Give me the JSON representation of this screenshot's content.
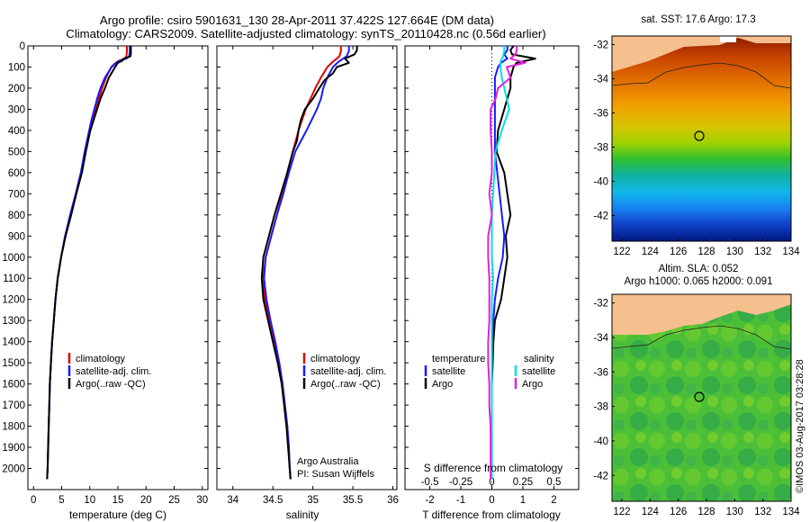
{
  "header": {
    "line1": "Argo profile: csiro 5901631_130 28-Apr-2011 37.422S 127.664E (DM data)",
    "line2": "Climatology: CARS2009. Satellite-adjusted climatology: synTS_20110428.nc (0.56d earlier)"
  },
  "colors": {
    "climatology": "#e00000",
    "satellite": "#1a1aff",
    "argo": "#000000",
    "salinity_diff_sat": "#00e0e0",
    "salinity_diff_argo": "#e020e0",
    "land": "#f5c08e"
  },
  "depth_axis": {
    "ticks": [
      "0",
      "100",
      "200",
      "300",
      "400",
      "500",
      "600",
      "700",
      "800",
      "900",
      "1000",
      "1100",
      "1200",
      "1300",
      "1400",
      "1500",
      "1600",
      "1700",
      "1800",
      "1900",
      "2000"
    ]
  },
  "legend": {
    "climatology": "climatology",
    "satellite": "satellite-adj. clim.",
    "argo": "Argo(..raw -QC)"
  },
  "diff_legend": {
    "temperature_head": "temperature",
    "salinity_head": "salinity",
    "satellite": "satellite",
    "argo": "Argo"
  },
  "credits": {
    "line1": "Argo Australia",
    "line2": "PI: Susan Wijffels"
  },
  "sst_panel": {
    "title": "sat. SST: 17.6 Argo: 17.3"
  },
  "sla_panel": {
    "title1": "Altim. SLA: 0.052",
    "title2": "Argo h1000: 0.065 h2000: 0.091"
  },
  "watermark": "©IMOS 03-Aug-2017 03:28:28",
  "map_axes": {
    "lat_ticks": [
      "-32",
      "-34",
      "-36",
      "-38",
      "-40",
      "-42"
    ],
    "lon_ticks": [
      "122",
      "124",
      "126",
      "128",
      "130",
      "132",
      "134"
    ]
  },
  "chart_data": [
    {
      "type": "line",
      "title": "",
      "xlabel": "temperature (deg C)",
      "ylabel": "",
      "xlim": [
        -1,
        31
      ],
      "ylim": [
        2100,
        0
      ],
      "x_ticks": [
        "0",
        "5",
        "10",
        "15",
        "20",
        "25",
        "30"
      ],
      "series": [
        {
          "name": "climatology",
          "depth": [
            0,
            25,
            50,
            60,
            70,
            80,
            100,
            150,
            200,
            250,
            300,
            350,
            400,
            450,
            500,
            600,
            700,
            800,
            900,
            1000,
            1100,
            1200,
            1300,
            1400,
            1500,
            1600,
            1700,
            1800,
            1900,
            2000,
            2050
          ],
          "values": [
            16.6,
            16.6,
            16.5,
            16.2,
            15.2,
            14.6,
            13.8,
            12.9,
            12.2,
            11.6,
            11.1,
            10.5,
            10.0,
            9.6,
            9.2,
            8.5,
            7.6,
            6.6,
            5.6,
            4.9,
            4.3,
            3.9,
            3.6,
            3.3,
            3.1,
            2.9,
            2.8,
            2.7,
            2.6,
            2.5,
            2.4
          ]
        },
        {
          "name": "satellite-adj. clim.",
          "depth": [
            0,
            25,
            50,
            60,
            70,
            80,
            100,
            150,
            200,
            250,
            300,
            350,
            400,
            450,
            500,
            600,
            700,
            800,
            900,
            1000,
            1100,
            1200,
            1300,
            1400,
            1500,
            1600,
            1700,
            1800,
            1900,
            2000,
            2050
          ],
          "values": [
            17.1,
            17.1,
            17.0,
            16.5,
            15.4,
            14.7,
            13.9,
            12.7,
            11.9,
            11.3,
            10.8,
            10.3,
            9.9,
            9.5,
            9.1,
            8.4,
            7.5,
            6.5,
            5.6,
            4.9,
            4.3,
            3.9,
            3.6,
            3.3,
            3.1,
            2.9,
            2.8,
            2.7,
            2.6,
            2.5,
            2.4
          ]
        },
        {
          "name": "Argo(..raw -QC)",
          "depth": [
            0,
            25,
            40,
            50,
            60,
            70,
            80,
            100,
            150,
            200,
            250,
            300,
            350,
            400,
            450,
            500,
            600,
            700,
            800,
            900,
            1000,
            1100,
            1200,
            1300,
            1400,
            1500,
            1600,
            1700,
            1800,
            1900,
            2000,
            2050
          ],
          "values": [
            17.3,
            17.3,
            17.3,
            17.2,
            16.0,
            15.8,
            15.0,
            14.5,
            13.4,
            12.7,
            11.9,
            11.3,
            10.7,
            10.1,
            9.7,
            9.3,
            8.6,
            7.6,
            6.7,
            5.7,
            4.9,
            4.3,
            3.9,
            3.6,
            3.3,
            3.1,
            2.9,
            2.8,
            2.7,
            2.6,
            2.5,
            2.4
          ]
        }
      ]
    },
    {
      "type": "line",
      "title": "",
      "xlabel": "salinity",
      "ylabel": "",
      "xlim": [
        33.8,
        36.05
      ],
      "ylim": [
        2100,
        0
      ],
      "x_ticks": [
        "34",
        "34.5",
        "35",
        "35.5",
        "36"
      ],
      "series": [
        {
          "name": "climatology",
          "depth": [
            0,
            25,
            50,
            75,
            100,
            150,
            200,
            250,
            300,
            400,
            500,
            600,
            700,
            800,
            900,
            1000,
            1100,
            1200,
            1300,
            1400,
            1500,
            1600,
            1700,
            1800,
            1900,
            2000,
            2050
          ],
          "values": [
            35.35,
            35.35,
            35.33,
            35.25,
            35.18,
            35.1,
            35.03,
            34.97,
            34.91,
            34.82,
            34.75,
            34.68,
            34.62,
            34.55,
            34.48,
            34.41,
            34.38,
            34.4,
            34.46,
            34.52,
            34.58,
            34.62,
            34.65,
            34.68,
            34.7,
            34.71,
            34.72
          ]
        },
        {
          "name": "satellite-adj. clim.",
          "depth": [
            0,
            25,
            50,
            75,
            100,
            150,
            200,
            250,
            300,
            400,
            500,
            600,
            700,
            800,
            900,
            1000,
            1100,
            1200,
            1300,
            1400,
            1500,
            1600,
            1700,
            1800,
            1900,
            2000,
            2050
          ],
          "values": [
            35.45,
            35.45,
            35.42,
            35.32,
            35.25,
            35.18,
            35.13,
            35.1,
            35.05,
            34.92,
            34.78,
            34.7,
            34.63,
            34.55,
            34.48,
            34.41,
            34.39,
            34.42,
            34.47,
            34.53,
            34.58,
            34.62,
            34.65,
            34.68,
            34.7,
            34.71,
            34.72
          ]
        },
        {
          "name": "Argo(..raw -QC)",
          "depth": [
            0,
            20,
            40,
            60,
            80,
            100,
            130,
            160,
            200,
            250,
            300,
            350,
            400,
            450,
            500,
            600,
            700,
            800,
            900,
            1000,
            1100,
            1200,
            1300,
            1400,
            1500,
            1600,
            1700,
            1800,
            1900,
            2000,
            2050
          ],
          "values": [
            35.55,
            35.55,
            35.52,
            35.4,
            35.45,
            35.3,
            35.25,
            35.15,
            35.08,
            35.0,
            34.9,
            34.85,
            34.82,
            34.8,
            34.75,
            34.68,
            34.6,
            34.52,
            34.45,
            34.38,
            34.36,
            34.38,
            34.44,
            34.5,
            34.56,
            34.61,
            34.64,
            34.67,
            34.69,
            34.71,
            34.72
          ]
        }
      ]
    },
    {
      "type": "line",
      "title": "",
      "xlabel": "T difference from climatology",
      "x2label": "S difference from climatology",
      "ylabel": "",
      "xlim": [
        -2.8,
        2.8
      ],
      "ylim": [
        2100,
        0
      ],
      "x_ticks": [
        "-2",
        "-1",
        "0",
        "1",
        "2"
      ],
      "x2_ticks": [
        "-0.5",
        "-0.25",
        "0",
        "0.25",
        "0.5"
      ],
      "series": [
        {
          "name": "temperature satellite",
          "depth": [
            0,
            20,
            40,
            60,
            80,
            100,
            150,
            200,
            300,
            400,
            500,
            700,
            900,
            1000,
            1100,
            1200,
            1300,
            1400,
            1500,
            1600,
            1700,
            1800,
            1900,
            2000,
            2050
          ],
          "values": [
            0.5,
            0.5,
            0.4,
            0.5,
            0.3,
            0.2,
            0.1,
            0.1,
            0.1,
            0.1,
            0.1,
            0.25,
            0.4,
            0.35,
            0.2,
            0.1,
            0.05,
            0.03,
            0.0,
            0.0,
            0.0,
            0.0,
            0.0,
            0.0,
            0.0
          ]
        },
        {
          "name": "temperature Argo",
          "depth": [
            0,
            20,
            40,
            60,
            80,
            100,
            150,
            200,
            250,
            300,
            400,
            500,
            600,
            700,
            800,
            900,
            1000,
            1100,
            1200,
            1300,
            1400,
            1500,
            1600,
            1700,
            1800,
            1900,
            2000,
            2050
          ],
          "values": [
            0.7,
            0.6,
            0.65,
            1.4,
            0.8,
            0.7,
            0.6,
            0.6,
            0.5,
            0.4,
            0.2,
            0.15,
            0.4,
            0.5,
            0.6,
            0.45,
            0.5,
            0.4,
            0.3,
            0.1,
            0.05,
            0.03,
            0.0,
            0.0,
            0.0,
            0.0,
            0.0,
            0.0
          ]
        },
        {
          "name": "salinity satellite",
          "depth": [
            0,
            25,
            50,
            75,
            100,
            150,
            200,
            300,
            400,
            500,
            600,
            700,
            800,
            900,
            1000,
            1100,
            1200,
            1300,
            1400,
            1500,
            1600,
            1700,
            1800,
            1900,
            2000,
            2050
          ],
          "values": [
            0.1,
            0.1,
            0.09,
            0.07,
            0.07,
            0.08,
            0.1,
            0.14,
            0.08,
            0.03,
            0.02,
            0.01,
            0.0,
            0.0,
            0.0,
            0.01,
            0.0,
            0.0,
            0.0,
            0.0,
            0.0,
            0.0,
            0.0,
            0.0,
            0.0,
            0.0
          ]
        },
        {
          "name": "salinity Argo",
          "depth": [
            0,
            20,
            40,
            60,
            80,
            100,
            150,
            200,
            250,
            300,
            400,
            500,
            600,
            700,
            800,
            900,
            1000,
            1100,
            1200,
            1300,
            1400,
            1500,
            1600,
            1700,
            1800,
            1900,
            2000,
            2050
          ],
          "values": [
            0.2,
            0.2,
            0.19,
            0.15,
            0.27,
            0.12,
            0.15,
            0.05,
            0.03,
            -0.01,
            -0.01,
            0.0,
            0.0,
            -0.02,
            0.0,
            -0.03,
            -0.03,
            -0.02,
            -0.02,
            -0.02,
            -0.03,
            -0.03,
            -0.02,
            -0.02,
            -0.01,
            -0.01,
            -0.01,
            -0.01
          ]
        }
      ]
    }
  ]
}
